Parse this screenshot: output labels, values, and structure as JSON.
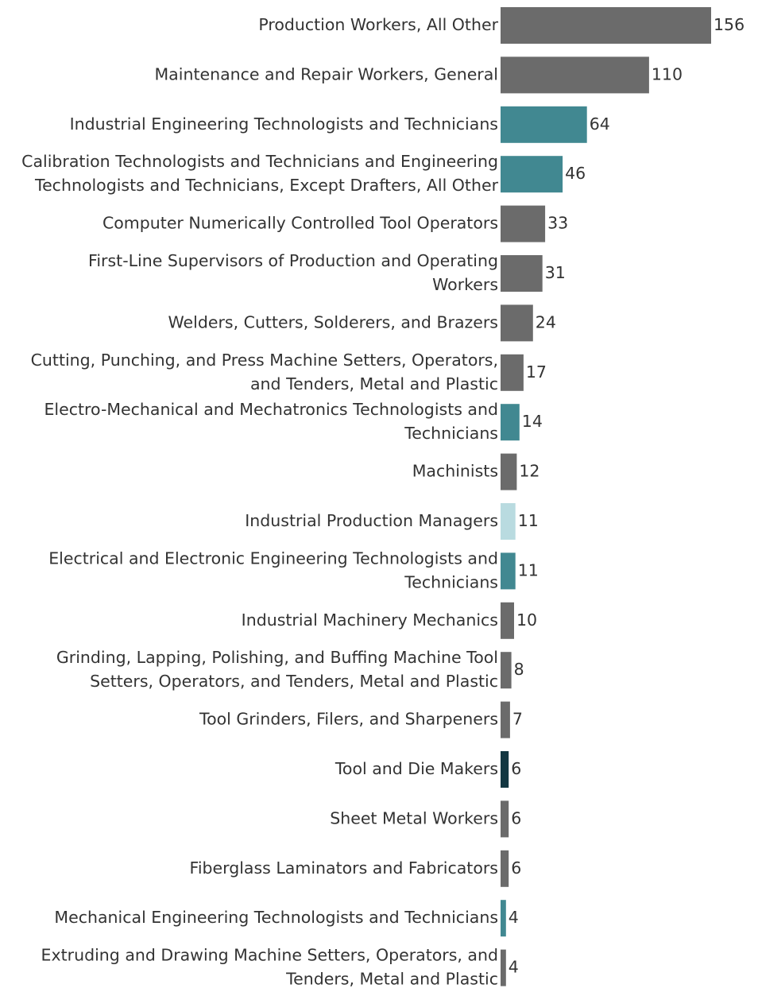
{
  "chart_data": {
    "type": "bar",
    "orientation": "horizontal",
    "grid": false,
    "legend": false,
    "xlim": [
      0,
      156
    ],
    "categories": [
      [
        "Production Workers, All Other"
      ],
      [
        "Maintenance and Repair Workers, General"
      ],
      [
        "Industrial Engineering Technologists and Technicians"
      ],
      [
        "Calibration Technologists and Technicians and Engineering",
        "Technologists and Technicians, Except Drafters, All Other"
      ],
      [
        "Computer Numerically Controlled Tool Operators"
      ],
      [
        "First-Line Supervisors of Production and Operating",
        "Workers"
      ],
      [
        "Welders, Cutters, Solderers, and Brazers"
      ],
      [
        "Cutting, Punching, and Press Machine Setters, Operators,",
        "and Tenders, Metal and Plastic"
      ],
      [
        "Electro-Mechanical and Mechatronics Technologists and",
        "Technicians"
      ],
      [
        "Machinists"
      ],
      [
        "Industrial Production Managers"
      ],
      [
        "Electrical and Electronic Engineering Technologists and",
        "Technicians"
      ],
      [
        "Industrial Machinery Mechanics"
      ],
      [
        "Grinding, Lapping, Polishing, and Buffing Machine Tool",
        "Setters, Operators, and Tenders, Metal and Plastic"
      ],
      [
        "Tool Grinders, Filers, and Sharpeners"
      ],
      [
        "Tool and Die Makers"
      ],
      [
        "Sheet Metal Workers"
      ],
      [
        "Fiberglass Laminators and Fabricators"
      ],
      [
        "Mechanical Engineering Technologists and Technicians"
      ],
      [
        "Extruding and Drawing Machine Setters, Operators, and",
        "Tenders, Metal and Plastic"
      ]
    ],
    "values": [
      156,
      110,
      64,
      46,
      33,
      31,
      24,
      17,
      14,
      12,
      11,
      11,
      10,
      8,
      7,
      6,
      6,
      6,
      4,
      4
    ],
    "bar_colors": [
      "#6b6b6b",
      "#6b6b6b",
      "#418891",
      "#418891",
      "#6b6b6b",
      "#6b6b6b",
      "#6b6b6b",
      "#6b6b6b",
      "#418891",
      "#6b6b6b",
      "#b9dbe0",
      "#418891",
      "#6b6b6b",
      "#6b6b6b",
      "#6b6b6b",
      "#123641",
      "#6b6b6b",
      "#6b6b6b",
      "#418891",
      "#6b6b6b"
    ],
    "text_color": "#333333"
  }
}
